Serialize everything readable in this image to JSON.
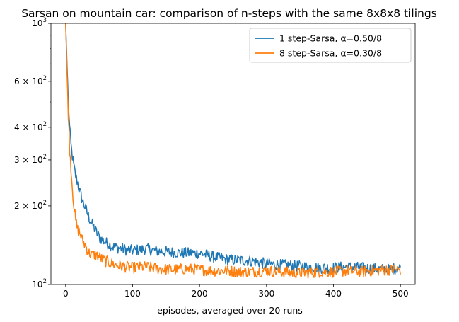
{
  "chart_data": {
    "type": "line",
    "title": "Sarsan on mountain car: comparison of n-steps with the same 8x8x8 tilings",
    "xlabel": "episodes, averaged over 20 runs",
    "ylabel": "",
    "xlim": [
      -22,
      522
    ],
    "ylim": [
      100,
      1000
    ],
    "yscale": "log",
    "grid": false,
    "legend_position": "top-right",
    "x_ticks": [
      0,
      100,
      200,
      300,
      400,
      500
    ],
    "y_ticks": [
      {
        "value": 100,
        "base": "10",
        "exp": "2"
      },
      {
        "value": 200,
        "base": "2 × 10",
        "exp": "2"
      },
      {
        "value": 300,
        "base": "3 × 10",
        "exp": "2"
      },
      {
        "value": 400,
        "base": "4 × 10",
        "exp": "2"
      },
      {
        "value": 600,
        "base": "6 × 10",
        "exp": "2"
      },
      {
        "value": 1000,
        "base": "10",
        "exp": "3"
      }
    ],
    "y_minor_ticks": [
      500,
      700,
      800,
      900
    ],
    "series": [
      {
        "name": "1 step-Sarsa, α=0.50/8",
        "color": "#1f77b4",
        "x": [
          0,
          2,
          4,
          6,
          8,
          10,
          12,
          15,
          18,
          20,
          25,
          30,
          35,
          40,
          45,
          50,
          55,
          60,
          70,
          80,
          90,
          100,
          120,
          140,
          160,
          180,
          200,
          220,
          240,
          260,
          280,
          300,
          320,
          340,
          360,
          380,
          400,
          420,
          440,
          460,
          480,
          500
        ],
        "y": [
          1000,
          700,
          500,
          400,
          340,
          310,
          285,
          260,
          245,
          232,
          210,
          195,
          180,
          170,
          160,
          152,
          148,
          145,
          140,
          138,
          136,
          135,
          137,
          134,
          133,
          132,
          132,
          128,
          125,
          124,
          123,
          120,
          119,
          118,
          117,
          116,
          116,
          117,
          116,
          115,
          114,
          116
        ]
      },
      {
        "name": "8 step-Sarsa, α=0.30/8",
        "color": "#ff7f0e",
        "x": [
          0,
          2,
          4,
          6,
          8,
          10,
          12,
          15,
          18,
          20,
          25,
          30,
          35,
          40,
          45,
          50,
          55,
          60,
          70,
          80,
          90,
          100,
          120,
          140,
          160,
          180,
          200,
          220,
          240,
          260,
          280,
          300,
          320,
          340,
          360,
          380,
          400,
          420,
          440,
          460,
          480,
          500
        ],
        "y": [
          1000,
          650,
          450,
          330,
          280,
          235,
          205,
          175,
          162,
          160,
          148,
          140,
          132,
          130,
          130,
          128,
          125,
          123,
          120,
          118,
          117,
          116,
          117,
          115,
          114,
          115,
          114,
          113,
          113,
          112,
          112,
          113,
          112,
          111,
          111,
          112,
          112,
          113,
          112,
          113,
          114,
          114
        ]
      }
    ]
  }
}
